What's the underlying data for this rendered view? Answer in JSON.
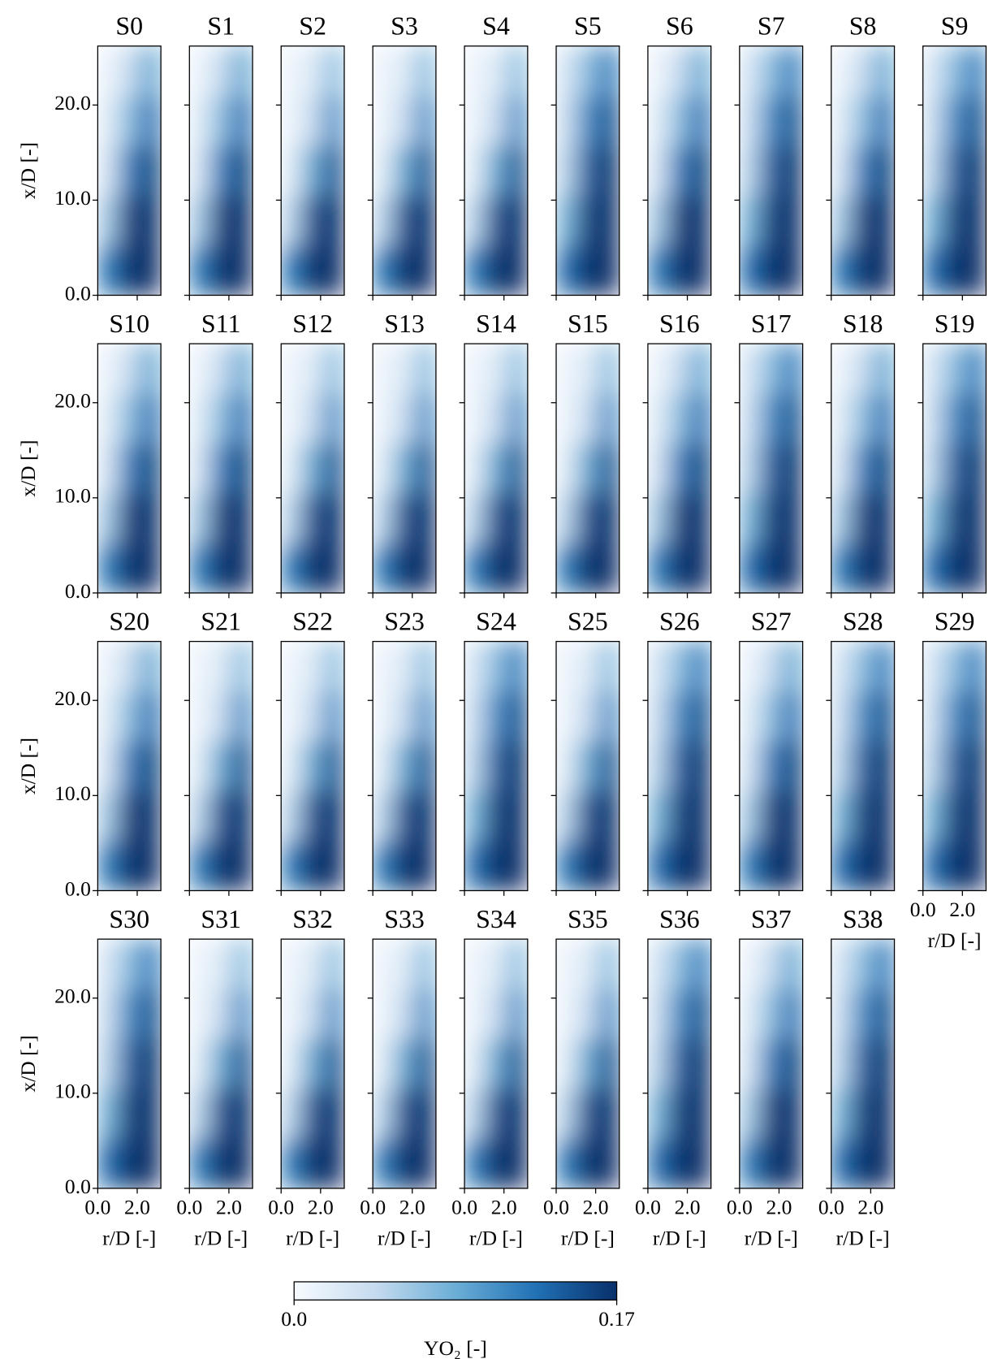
{
  "chart_data": {
    "type": "heatmap",
    "xlabel": "r/D [-]",
    "ylabel": "x/D [-]",
    "xlim": [
      0,
      3.2
    ],
    "ylim": [
      0,
      26.2
    ],
    "xticks": [
      {
        "value": 0,
        "label": "0.0"
      },
      {
        "value": 2,
        "label": "2.0"
      }
    ],
    "yticks": [
      {
        "value": 0,
        "label": "0.0"
      },
      {
        "value": 10,
        "label": "10.0"
      },
      {
        "value": 20,
        "label": "20.0"
      }
    ],
    "grid_x": [
      0.53,
      1.6,
      2.67
    ],
    "grid_y": [
      2.62,
      7.86,
      13.1,
      18.34,
      23.58
    ],
    "colormap": [
      "#f7fbff",
      "#c6dbef",
      "#6baed6",
      "#2171b5",
      "#08306b"
    ],
    "clim": [
      0,
      0.17
    ],
    "colorbar_ticks": [
      {
        "value": 0,
        "label": "0.0"
      },
      0.17
    ],
    "colorbar_label": "YO₂ [-]",
    "panels": [
      {
        "title": "S0",
        "values": [
          [
            0.12,
            0.17,
            0.17
          ],
          [
            0.06,
            0.16,
            0.17
          ],
          [
            0.03,
            0.12,
            0.16
          ],
          [
            0.02,
            0.07,
            0.13
          ],
          [
            0.01,
            0.04,
            0.09
          ]
        ]
      },
      {
        "title": "S1",
        "values": [
          [
            0.12,
            0.17,
            0.17
          ],
          [
            0.06,
            0.16,
            0.17
          ],
          [
            0.03,
            0.12,
            0.16
          ],
          [
            0.02,
            0.07,
            0.13
          ],
          [
            0.01,
            0.04,
            0.09
          ]
        ]
      },
      {
        "title": "S2",
        "values": [
          [
            0.12,
            0.17,
            0.17
          ],
          [
            0.05,
            0.15,
            0.17
          ],
          [
            0.02,
            0.09,
            0.15
          ],
          [
            0.01,
            0.04,
            0.11
          ],
          [
            0.01,
            0.02,
            0.07
          ]
        ]
      },
      {
        "title": "S3",
        "values": [
          [
            0.12,
            0.17,
            0.17
          ],
          [
            0.05,
            0.15,
            0.17
          ],
          [
            0.02,
            0.09,
            0.15
          ],
          [
            0.01,
            0.04,
            0.11
          ],
          [
            0.01,
            0.02,
            0.07
          ]
        ]
      },
      {
        "title": "S4",
        "values": [
          [
            0.12,
            0.17,
            0.17
          ],
          [
            0.05,
            0.15,
            0.17
          ],
          [
            0.02,
            0.09,
            0.15
          ],
          [
            0.01,
            0.04,
            0.11
          ],
          [
            0.01,
            0.02,
            0.07
          ]
        ]
      },
      {
        "title": "S5",
        "values": [
          [
            0.13,
            0.17,
            0.17
          ],
          [
            0.08,
            0.16,
            0.17
          ],
          [
            0.05,
            0.14,
            0.17
          ],
          [
            0.04,
            0.11,
            0.15
          ],
          [
            0.03,
            0.07,
            0.12
          ]
        ]
      },
      {
        "title": "S6",
        "values": [
          [
            0.12,
            0.17,
            0.17
          ],
          [
            0.06,
            0.16,
            0.17
          ],
          [
            0.03,
            0.12,
            0.16
          ],
          [
            0.02,
            0.07,
            0.13
          ],
          [
            0.01,
            0.04,
            0.09
          ]
        ]
      },
      {
        "title": "S7",
        "values": [
          [
            0.13,
            0.17,
            0.17
          ],
          [
            0.08,
            0.16,
            0.17
          ],
          [
            0.05,
            0.14,
            0.17
          ],
          [
            0.04,
            0.11,
            0.15
          ],
          [
            0.03,
            0.07,
            0.12
          ]
        ]
      },
      {
        "title": "S8",
        "values": [
          [
            0.12,
            0.17,
            0.17
          ],
          [
            0.06,
            0.16,
            0.17
          ],
          [
            0.03,
            0.12,
            0.16
          ],
          [
            0.02,
            0.07,
            0.13
          ],
          [
            0.01,
            0.04,
            0.09
          ]
        ]
      },
      {
        "title": "S9",
        "values": [
          [
            0.13,
            0.17,
            0.17
          ],
          [
            0.08,
            0.16,
            0.17
          ],
          [
            0.05,
            0.14,
            0.17
          ],
          [
            0.04,
            0.11,
            0.15
          ],
          [
            0.03,
            0.07,
            0.12
          ]
        ]
      },
      {
        "title": "S10",
        "values": [
          [
            0.12,
            0.17,
            0.17
          ],
          [
            0.06,
            0.16,
            0.17
          ],
          [
            0.03,
            0.12,
            0.16
          ],
          [
            0.02,
            0.07,
            0.13
          ],
          [
            0.01,
            0.04,
            0.09
          ]
        ]
      },
      {
        "title": "S11",
        "values": [
          [
            0.12,
            0.17,
            0.17
          ],
          [
            0.06,
            0.16,
            0.17
          ],
          [
            0.03,
            0.12,
            0.16
          ],
          [
            0.02,
            0.07,
            0.13
          ],
          [
            0.01,
            0.04,
            0.09
          ]
        ]
      },
      {
        "title": "S12",
        "values": [
          [
            0.12,
            0.17,
            0.17
          ],
          [
            0.05,
            0.15,
            0.17
          ],
          [
            0.02,
            0.09,
            0.15
          ],
          [
            0.01,
            0.04,
            0.11
          ],
          [
            0.01,
            0.02,
            0.07
          ]
        ]
      },
      {
        "title": "S13",
        "values": [
          [
            0.12,
            0.17,
            0.17
          ],
          [
            0.05,
            0.15,
            0.17
          ],
          [
            0.02,
            0.09,
            0.15
          ],
          [
            0.01,
            0.04,
            0.11
          ],
          [
            0.01,
            0.02,
            0.07
          ]
        ]
      },
      {
        "title": "S14",
        "values": [
          [
            0.12,
            0.17,
            0.17
          ],
          [
            0.05,
            0.15,
            0.17
          ],
          [
            0.02,
            0.09,
            0.15
          ],
          [
            0.01,
            0.04,
            0.11
          ],
          [
            0.01,
            0.02,
            0.07
          ]
        ]
      },
      {
        "title": "S15",
        "values": [
          [
            0.12,
            0.17,
            0.17
          ],
          [
            0.05,
            0.15,
            0.17
          ],
          [
            0.02,
            0.09,
            0.15
          ],
          [
            0.01,
            0.04,
            0.11
          ],
          [
            0.01,
            0.02,
            0.07
          ]
        ]
      },
      {
        "title": "S16",
        "values": [
          [
            0.12,
            0.17,
            0.17
          ],
          [
            0.06,
            0.16,
            0.17
          ],
          [
            0.03,
            0.12,
            0.16
          ],
          [
            0.02,
            0.07,
            0.13
          ],
          [
            0.01,
            0.04,
            0.09
          ]
        ]
      },
      {
        "title": "S17",
        "values": [
          [
            0.13,
            0.17,
            0.17
          ],
          [
            0.08,
            0.16,
            0.17
          ],
          [
            0.05,
            0.14,
            0.17
          ],
          [
            0.04,
            0.11,
            0.15
          ],
          [
            0.03,
            0.07,
            0.12
          ]
        ]
      },
      {
        "title": "S18",
        "values": [
          [
            0.12,
            0.17,
            0.17
          ],
          [
            0.06,
            0.16,
            0.17
          ],
          [
            0.03,
            0.12,
            0.16
          ],
          [
            0.02,
            0.07,
            0.13
          ],
          [
            0.01,
            0.04,
            0.09
          ]
        ]
      },
      {
        "title": "S19",
        "values": [
          [
            0.13,
            0.17,
            0.17
          ],
          [
            0.08,
            0.16,
            0.17
          ],
          [
            0.05,
            0.14,
            0.17
          ],
          [
            0.04,
            0.11,
            0.15
          ],
          [
            0.03,
            0.07,
            0.12
          ]
        ]
      },
      {
        "title": "S20",
        "values": [
          [
            0.12,
            0.17,
            0.17
          ],
          [
            0.06,
            0.16,
            0.17
          ],
          [
            0.03,
            0.12,
            0.16
          ],
          [
            0.02,
            0.07,
            0.13
          ],
          [
            0.01,
            0.04,
            0.09
          ]
        ]
      },
      {
        "title": "S21",
        "values": [
          [
            0.12,
            0.17,
            0.17
          ],
          [
            0.05,
            0.15,
            0.17
          ],
          [
            0.02,
            0.09,
            0.15
          ],
          [
            0.01,
            0.04,
            0.11
          ],
          [
            0.01,
            0.02,
            0.07
          ]
        ]
      },
      {
        "title": "S22",
        "values": [
          [
            0.12,
            0.17,
            0.17
          ],
          [
            0.05,
            0.15,
            0.17
          ],
          [
            0.02,
            0.09,
            0.15
          ],
          [
            0.01,
            0.04,
            0.11
          ],
          [
            0.01,
            0.02,
            0.07
          ]
        ]
      },
      {
        "title": "S23",
        "values": [
          [
            0.12,
            0.17,
            0.17
          ],
          [
            0.05,
            0.15,
            0.17
          ],
          [
            0.02,
            0.09,
            0.15
          ],
          [
            0.01,
            0.04,
            0.11
          ],
          [
            0.01,
            0.02,
            0.07
          ]
        ]
      },
      {
        "title": "S24",
        "values": [
          [
            0.13,
            0.17,
            0.17
          ],
          [
            0.08,
            0.16,
            0.17
          ],
          [
            0.05,
            0.14,
            0.17
          ],
          [
            0.04,
            0.11,
            0.15
          ],
          [
            0.03,
            0.07,
            0.12
          ]
        ]
      },
      {
        "title": "S25",
        "values": [
          [
            0.12,
            0.17,
            0.17
          ],
          [
            0.05,
            0.15,
            0.17
          ],
          [
            0.02,
            0.09,
            0.15
          ],
          [
            0.01,
            0.04,
            0.11
          ],
          [
            0.01,
            0.02,
            0.07
          ]
        ]
      },
      {
        "title": "S26",
        "values": [
          [
            0.13,
            0.17,
            0.17
          ],
          [
            0.08,
            0.16,
            0.17
          ],
          [
            0.05,
            0.14,
            0.17
          ],
          [
            0.04,
            0.11,
            0.15
          ],
          [
            0.03,
            0.07,
            0.12
          ]
        ]
      },
      {
        "title": "S27",
        "values": [
          [
            0.12,
            0.17,
            0.17
          ],
          [
            0.06,
            0.16,
            0.17
          ],
          [
            0.03,
            0.12,
            0.16
          ],
          [
            0.02,
            0.07,
            0.13
          ],
          [
            0.01,
            0.04,
            0.09
          ]
        ]
      },
      {
        "title": "S28",
        "values": [
          [
            0.13,
            0.17,
            0.17
          ],
          [
            0.08,
            0.16,
            0.17
          ],
          [
            0.05,
            0.14,
            0.17
          ],
          [
            0.04,
            0.11,
            0.15
          ],
          [
            0.03,
            0.07,
            0.12
          ]
        ]
      },
      {
        "title": "S29",
        "values": [
          [
            0.13,
            0.17,
            0.17
          ],
          [
            0.08,
            0.16,
            0.17
          ],
          [
            0.05,
            0.14,
            0.17
          ],
          [
            0.04,
            0.11,
            0.15
          ],
          [
            0.03,
            0.07,
            0.12
          ]
        ]
      },
      {
        "title": "S30",
        "values": [
          [
            0.13,
            0.17,
            0.17
          ],
          [
            0.08,
            0.16,
            0.17
          ],
          [
            0.05,
            0.14,
            0.17
          ],
          [
            0.04,
            0.11,
            0.15
          ],
          [
            0.03,
            0.07,
            0.12
          ]
        ]
      },
      {
        "title": "S31",
        "values": [
          [
            0.12,
            0.17,
            0.17
          ],
          [
            0.05,
            0.15,
            0.17
          ],
          [
            0.02,
            0.09,
            0.15
          ],
          [
            0.01,
            0.04,
            0.11
          ],
          [
            0.01,
            0.02,
            0.07
          ]
        ]
      },
      {
        "title": "S32",
        "values": [
          [
            0.12,
            0.17,
            0.17
          ],
          [
            0.05,
            0.15,
            0.17
          ],
          [
            0.02,
            0.09,
            0.15
          ],
          [
            0.01,
            0.04,
            0.11
          ],
          [
            0.01,
            0.02,
            0.07
          ]
        ]
      },
      {
        "title": "S33",
        "values": [
          [
            0.12,
            0.17,
            0.17
          ],
          [
            0.05,
            0.15,
            0.17
          ],
          [
            0.02,
            0.09,
            0.15
          ],
          [
            0.01,
            0.04,
            0.11
          ],
          [
            0.01,
            0.02,
            0.07
          ]
        ]
      },
      {
        "title": "S34",
        "values": [
          [
            0.12,
            0.17,
            0.17
          ],
          [
            0.05,
            0.15,
            0.17
          ],
          [
            0.02,
            0.09,
            0.15
          ],
          [
            0.01,
            0.04,
            0.11
          ],
          [
            0.01,
            0.02,
            0.07
          ]
        ]
      },
      {
        "title": "S35",
        "values": [
          [
            0.12,
            0.17,
            0.17
          ],
          [
            0.05,
            0.15,
            0.17
          ],
          [
            0.02,
            0.09,
            0.15
          ],
          [
            0.01,
            0.04,
            0.11
          ],
          [
            0.01,
            0.02,
            0.07
          ]
        ]
      },
      {
        "title": "S36",
        "values": [
          [
            0.13,
            0.17,
            0.17
          ],
          [
            0.08,
            0.16,
            0.17
          ],
          [
            0.05,
            0.14,
            0.17
          ],
          [
            0.04,
            0.11,
            0.15
          ],
          [
            0.03,
            0.07,
            0.12
          ]
        ]
      },
      {
        "title": "S37",
        "values": [
          [
            0.12,
            0.17,
            0.17
          ],
          [
            0.06,
            0.16,
            0.17
          ],
          [
            0.03,
            0.12,
            0.16
          ],
          [
            0.02,
            0.07,
            0.13
          ],
          [
            0.01,
            0.04,
            0.09
          ]
        ]
      },
      {
        "title": "S38",
        "values": [
          [
            0.13,
            0.17,
            0.17
          ],
          [
            0.08,
            0.16,
            0.17
          ],
          [
            0.05,
            0.14,
            0.17
          ],
          [
            0.04,
            0.11,
            0.15
          ],
          [
            0.03,
            0.07,
            0.12
          ]
        ]
      }
    ]
  }
}
